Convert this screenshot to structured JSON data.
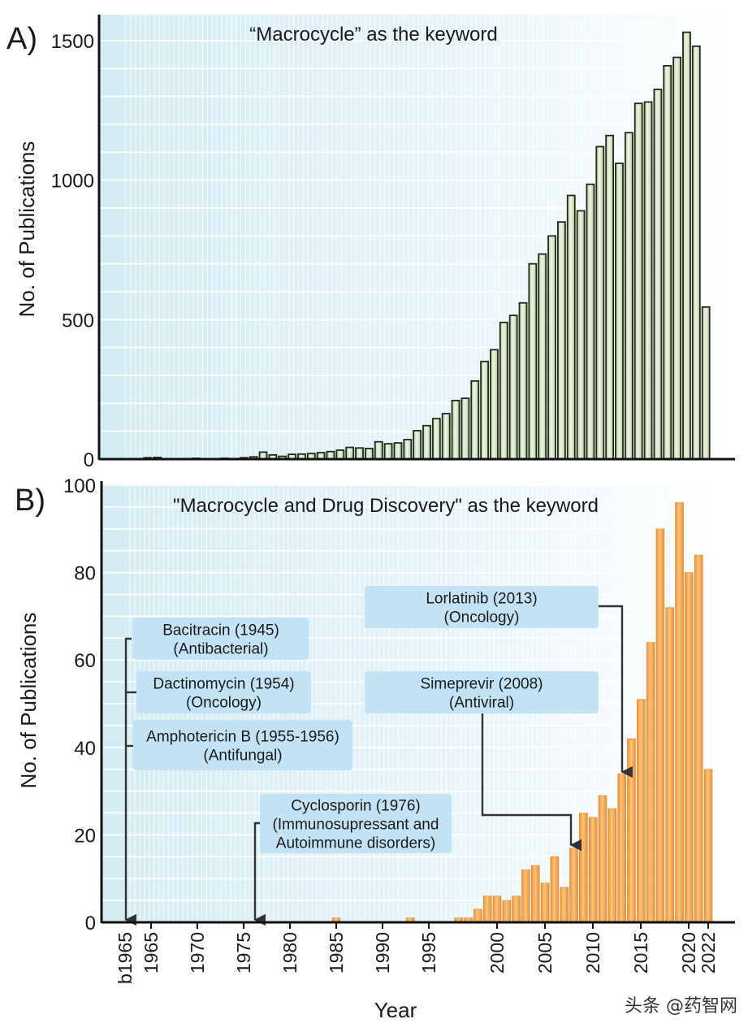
{
  "chart_data": [
    {
      "panel_label": "A)",
      "type": "bar",
      "title": "“Macrocycle” as the keyword",
      "xlabel": "",
      "ylabel": "No. of Publications",
      "ylim": [
        0,
        1500
      ],
      "yticks": [
        "0",
        "500",
        "1000",
        "1500"
      ],
      "grid": true,
      "bar_color": "#d5e2c4",
      "x": [
        1963,
        1964,
        1965,
        1966,
        1967,
        1968,
        1969,
        1970,
        1971,
        1972,
        1973,
        1974,
        1975,
        1976,
        1977,
        1978,
        1979,
        1980,
        1981,
        1982,
        1983,
        1984,
        1985,
        1986,
        1987,
        1988,
        1989,
        1990,
        1991,
        1992,
        1993,
        1994,
        1995,
        1996,
        1997,
        1998,
        1999,
        2000,
        2001,
        2002,
        2003,
        2004,
        2005,
        2006,
        2007,
        2008,
        2009,
        2010,
        2011,
        2012,
        2013,
        2014,
        2015,
        2016,
        2017,
        2018,
        2019,
        2020,
        2021,
        2022
      ],
      "values": [
        0,
        5,
        6,
        0,
        0,
        0,
        3,
        0,
        0,
        3,
        2,
        5,
        8,
        25,
        15,
        10,
        17,
        18,
        20,
        23,
        27,
        32,
        42,
        40,
        38,
        62,
        55,
        58,
        70,
        102,
        120,
        145,
        163,
        210,
        218,
        280,
        350,
        392,
        490,
        515,
        560,
        700,
        735,
        800,
        850,
        945,
        890,
        985,
        1120,
        1160,
        1060,
        1170,
        1275,
        1280,
        1325,
        1410,
        1440,
        1530,
        1480,
        545
      ]
    },
    {
      "panel_label": "B)",
      "type": "bar",
      "title": "\"Macrocycle and Drug Discovery\" as the keyword",
      "xlabel": "Year",
      "ylabel": "No. of Publications",
      "ylim": [
        0,
        100
      ],
      "yticks": [
        "0",
        "20",
        "40",
        "60",
        "80",
        "100"
      ],
      "xticks": [
        "b1965",
        "1965",
        "1970",
        "1975",
        "1980",
        "1985",
        "1990",
        "1995",
        "2000",
        "2005",
        "2010",
        "2015",
        "2020",
        "2022"
      ],
      "grid": true,
      "bar_color": "#f5a54a",
      "x": [
        1985,
        1993,
        1996,
        1997,
        1998,
        1999,
        2000,
        2001,
        2002,
        2003,
        2004,
        2005,
        2006,
        2007,
        2008,
        2009,
        2010,
        2011,
        2012,
        2013,
        2014,
        2015,
        2016,
        2017,
        2018,
        2019,
        2020,
        2021,
        2022
      ],
      "values": [
        1,
        1,
        1,
        1,
        3,
        6,
        6,
        5,
        6,
        12,
        13,
        9,
        15,
        8,
        17,
        25,
        24,
        29,
        26,
        34,
        42,
        51,
        64,
        90,
        72,
        96,
        80,
        84,
        35
      ],
      "annotations": [
        {
          "line1": "Bacitracin (1945)",
          "line2": "(Antibacterial)",
          "line3": "",
          "points_to": "b1965"
        },
        {
          "line1": "Dactinomycin (1954)",
          "line2": "(Oncology)",
          "line3": "",
          "points_to": "b1965"
        },
        {
          "line1": "Amphotericin B (1955-1956)",
          "line2": "(Antifungal)",
          "line3": "",
          "points_to": "b1965"
        },
        {
          "line1": "Cyclosporin (1976)",
          "line2": "(Immunosupressant and",
          "line3": "Autoimmune disorders)",
          "points_to": "1976"
        },
        {
          "line1": "Lorlatinib (2013)",
          "line2": "(Oncology)",
          "line3": "",
          "points_to": "2013"
        },
        {
          "line1": "Simeprevir (2008)",
          "line2": "(Antiviral)",
          "line3": "",
          "points_to": "2008"
        }
      ]
    }
  ],
  "watermark": "头条 @药智网"
}
